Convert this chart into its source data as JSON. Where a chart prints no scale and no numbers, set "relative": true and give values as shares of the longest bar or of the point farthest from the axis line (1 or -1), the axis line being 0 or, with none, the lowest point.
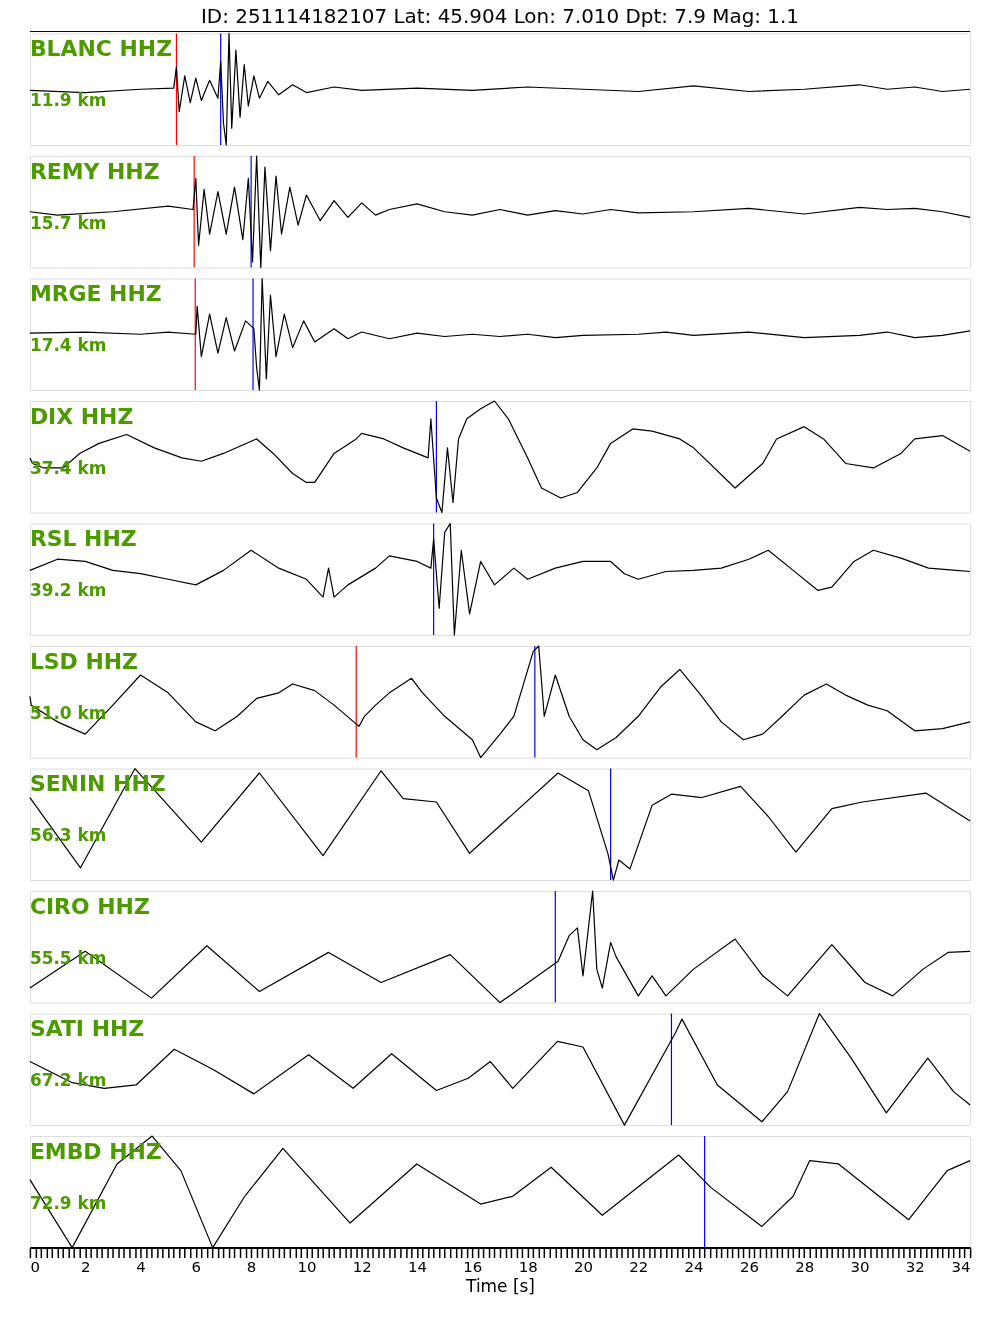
{
  "chart_data": [
    {
      "type": "line",
      "relative": true,
      "title": "ID: 251114182107 Lat:  45.904 Lon:   7.010 Dpt:     7.9 Mag:   1.1",
      "xlim": [
        0,
        34
      ],
      "tick_labels": false,
      "annotations": [
        "BLANC HHZ",
        "11.9 km"
      ],
      "ref_lines": [
        {
          "axis": "x",
          "value": 5.3,
          "color": "#ff0000"
        },
        {
          "axis": "x",
          "value": 6.9,
          "color": "#0000ff"
        }
      ],
      "series": [
        {
          "color": "#000000",
          "x": [
            0,
            2,
            4,
            5.2,
            5.3,
            5.4,
            5.6,
            5.8,
            6.0,
            6.2,
            6.5,
            6.8,
            6.9,
            7.0,
            7.1,
            7.2,
            7.3,
            7.45,
            7.6,
            7.75,
            7.9,
            8.1,
            8.3,
            8.6,
            9,
            9.5,
            10,
            11,
            12,
            14,
            16,
            18,
            20,
            22,
            24,
            26,
            28,
            30,
            31,
            32,
            33,
            34
          ],
          "values": [
            0.49,
            0.47,
            0.5,
            0.51,
            0.7,
            0.3,
            0.62,
            0.38,
            0.6,
            0.4,
            0.58,
            0.42,
            0.75,
            0.2,
            0.0,
            1.0,
            0.15,
            0.85,
            0.25,
            0.72,
            0.35,
            0.62,
            0.42,
            0.57,
            0.45,
            0.54,
            0.47,
            0.52,
            0.49,
            0.51,
            0.49,
            0.52,
            0.5,
            0.48,
            0.53,
            0.48,
            0.5,
            0.54,
            0.5,
            0.52,
            0.48,
            0.5
          ]
        }
      ]
    },
    {
      "type": "line",
      "relative": true,
      "xlim": [
        0,
        34
      ],
      "tick_labels": false,
      "annotations": [
        "REMY HHZ",
        "15.7 km"
      ],
      "ref_lines": [
        {
          "axis": "x",
          "value": 5.94,
          "color": "#ff0000"
        },
        {
          "axis": "x",
          "value": 8.0,
          "color": "#0000ff"
        }
      ],
      "series": [
        {
          "color": "#000000",
          "x": [
            0,
            1,
            3,
            5,
            5.9,
            6.0,
            6.1,
            6.3,
            6.5,
            6.8,
            7.1,
            7.4,
            7.7,
            7.9,
            8.05,
            8.2,
            8.35,
            8.5,
            8.7,
            8.9,
            9.1,
            9.4,
            9.7,
            10,
            10.5,
            11,
            11.5,
            12,
            12.5,
            13,
            14,
            15,
            16,
            17,
            18,
            19,
            20,
            21,
            22,
            24,
            26,
            28,
            30,
            31,
            32,
            33,
            34
          ],
          "values": [
            0.5,
            0.47,
            0.5,
            0.55,
            0.52,
            0.8,
            0.2,
            0.7,
            0.3,
            0.68,
            0.3,
            0.72,
            0.25,
            0.8,
            0.05,
            1.0,
            0.0,
            0.9,
            0.15,
            0.82,
            0.3,
            0.72,
            0.38,
            0.65,
            0.42,
            0.6,
            0.45,
            0.58,
            0.47,
            0.52,
            0.57,
            0.5,
            0.47,
            0.52,
            0.47,
            0.51,
            0.48,
            0.52,
            0.49,
            0.5,
            0.53,
            0.48,
            0.54,
            0.52,
            0.53,
            0.5,
            0.45
          ]
        }
      ]
    },
    {
      "type": "line",
      "relative": true,
      "xlim": [
        0,
        34
      ],
      "tick_labels": false,
      "annotations": [
        "MRGE HHZ",
        "17.4 km"
      ],
      "ref_lines": [
        {
          "axis": "x",
          "value": 5.98,
          "color": "#ff0000"
        },
        {
          "axis": "x",
          "value": 8.07,
          "color": "#0000ff"
        }
      ],
      "series": [
        {
          "color": "#000000",
          "x": [
            0,
            2,
            4,
            5,
            6.0,
            6.05,
            6.2,
            6.5,
            6.8,
            7.1,
            7.4,
            7.8,
            8.1,
            8.2,
            8.3,
            8.4,
            8.55,
            8.7,
            8.9,
            9.2,
            9.5,
            9.9,
            10.3,
            11,
            11.5,
            12,
            13,
            14,
            15,
            16,
            17,
            18,
            19,
            20,
            22,
            23,
            24,
            26,
            28,
            30,
            31,
            32,
            33,
            34
          ],
          "values": [
            0.51,
            0.52,
            0.5,
            0.52,
            0.5,
            0.75,
            0.3,
            0.68,
            0.33,
            0.65,
            0.35,
            0.62,
            0.55,
            0.2,
            0.0,
            1.0,
            0.1,
            0.85,
            0.3,
            0.68,
            0.38,
            0.62,
            0.43,
            0.55,
            0.46,
            0.52,
            0.46,
            0.51,
            0.48,
            0.5,
            0.48,
            0.5,
            0.47,
            0.49,
            0.5,
            0.52,
            0.49,
            0.52,
            0.47,
            0.49,
            0.52,
            0.47,
            0.49,
            0.53
          ]
        }
      ]
    },
    {
      "type": "line",
      "relative": true,
      "xlim": [
        0,
        34
      ],
      "tick_labels": false,
      "annotations": [
        "DIX HHZ",
        "37.4 km"
      ],
      "ref_lines": [
        {
          "axis": "x",
          "value": 14.7,
          "color": "#0000ff"
        }
      ],
      "series": [
        {
          "color": "#000000",
          "x": [
            0,
            0.1,
            0.5,
            1.2,
            1.8,
            2.5,
            3.5,
            4.5,
            5.5,
            6.2,
            7,
            8.2,
            8.8,
            9.5,
            10,
            10.3,
            11,
            11.8,
            12,
            12.8,
            13.5,
            14.4,
            14.5,
            14.7,
            14.9,
            15.1,
            15.3,
            15.5,
            15.8,
            16.3,
            16.8,
            17.3,
            18,
            18.5,
            19.2,
            19.8,
            20.5,
            21,
            21.8,
            22.5,
            23.5,
            24,
            25.5,
            26.5,
            27,
            28,
            28.7,
            29.5,
            30.5,
            31.5,
            32,
            33,
            34
          ],
          "values": [
            0.49,
            0.44,
            0.4,
            0.4,
            0.53,
            0.62,
            0.7,
            0.58,
            0.49,
            0.46,
            0.53,
            0.66,
            0.53,
            0.35,
            0.27,
            0.27,
            0.53,
            0.66,
            0.71,
            0.66,
            0.58,
            0.49,
            0.84,
            0.13,
            0,
            0.58,
            0.09,
            0.66,
            0.84,
            0.93,
            1,
            0.84,
            0.49,
            0.22,
            0.13,
            0.18,
            0.4,
            0.62,
            0.75,
            0.73,
            0.66,
            0.58,
            0.22,
            0.44,
            0.66,
            0.77,
            0.66,
            0.44,
            0.4,
            0.53,
            0.66,
            0.69,
            0.55
          ]
        }
      ]
    },
    {
      "type": "line",
      "relative": true,
      "xlim": [
        0,
        34
      ],
      "tick_labels": false,
      "annotations": [
        "RSL HHZ",
        "39.2 km"
      ],
      "ref_lines": [
        {
          "axis": "x",
          "value": 14.6,
          "color": "#0000ff"
        }
      ],
      "series": [
        {
          "color": "#000000",
          "x": [
            0,
            1,
            2,
            3,
            4,
            5,
            6,
            7,
            8,
            9,
            10,
            10.6,
            10.8,
            11,
            11.5,
            12.5,
            13,
            14,
            14.5,
            14.6,
            14.8,
            15,
            15.2,
            15.35,
            15.6,
            15.9,
            16.3,
            16.8,
            17.5,
            18,
            19,
            20,
            21,
            21.5,
            22,
            23,
            24,
            25,
            26,
            26.7,
            27.5,
            28.5,
            29,
            29.8,
            30.5,
            31.5,
            32.5,
            33.5,
            34
          ],
          "values": [
            0.58,
            0.68,
            0.66,
            0.58,
            0.55,
            0.5,
            0.45,
            0.58,
            0.76,
            0.6,
            0.5,
            0.34,
            0.6,
            0.34,
            0.45,
            0.6,
            0.71,
            0.66,
            0.6,
            0.86,
            0.24,
            0.92,
            1,
            0,
            0.76,
            0.19,
            0.66,
            0.45,
            0.6,
            0.5,
            0.6,
            0.66,
            0.66,
            0.55,
            0.5,
            0.57,
            0.58,
            0.6,
            0.68,
            0.76,
            0.6,
            0.4,
            0.43,
            0.66,
            0.76,
            0.69,
            0.6,
            0.58,
            0.57
          ]
        }
      ]
    },
    {
      "type": "line",
      "relative": true,
      "xlim": [
        0,
        34
      ],
      "tick_labels": false,
      "annotations": [
        "LSD HHZ",
        "51.0 km"
      ],
      "ref_lines": [
        {
          "axis": "x",
          "value": 11.8,
          "color": "#ff0000"
        },
        {
          "axis": "x",
          "value": 18.26,
          "color": "#0000ff"
        }
      ],
      "series": [
        {
          "color": "#000000",
          "x": [
            0,
            0.05,
            1,
            2,
            3,
            4,
            5,
            6,
            6.7,
            7.5,
            8.2,
            9,
            9.5,
            10.3,
            11,
            11.9,
            12.1,
            12.5,
            13,
            13.8,
            14.2,
            15,
            16,
            16.3,
            17,
            17.5,
            18.2,
            18.4,
            18.6,
            19,
            19.5,
            20,
            20.5,
            21.2,
            22,
            22.8,
            23.5,
            24.2,
            25,
            25.8,
            26.5,
            27.2,
            28,
            28.8,
            29.5,
            30.3,
            31,
            32,
            33,
            34
          ],
          "values": [
            0.55,
            0.47,
            0.32,
            0.21,
            0.47,
            0.74,
            0.58,
            0.32,
            0.24,
            0.37,
            0.53,
            0.58,
            0.66,
            0.6,
            0.47,
            0.28,
            0.37,
            0.47,
            0.58,
            0.71,
            0.58,
            0.37,
            0.16,
            0,
            0.21,
            0.37,
            0.95,
            1,
            0.37,
            0.74,
            0.37,
            0.16,
            0.07,
            0.18,
            0.37,
            0.63,
            0.79,
            0.58,
            0.32,
            0.16,
            0.21,
            0.37,
            0.56,
            0.66,
            0.56,
            0.47,
            0.42,
            0.24,
            0.26,
            0.32
          ]
        }
      ]
    },
    {
      "type": "line",
      "relative": true,
      "xlim": [
        0,
        34
      ],
      "tick_labels": false,
      "annotations": [
        "SENIN HHZ",
        "56.3 km"
      ],
      "ref_lines": [
        {
          "axis": "x",
          "value": 21.0,
          "color": "#0000ff"
        }
      ],
      "series": [
        {
          "color": "#000000",
          "x": [
            0,
            1.83,
            3.8,
            6.2,
            8.3,
            10.6,
            12.7,
            13.5,
            14.7,
            15.9,
            19.1,
            20.2,
            20.9,
            21.1,
            21.3,
            21.7,
            22.5,
            23.2,
            24.3,
            25.7,
            26.7,
            27.7,
            29,
            30.1,
            32.4,
            34
          ],
          "values": [
            0.74,
            0.11,
            1.0,
            0.34,
            0.96,
            0.22,
            0.98,
            0.73,
            0.7,
            0.24,
            0.96,
            0.8,
            0.24,
            0,
            0.18,
            0.1,
            0.67,
            0.77,
            0.74,
            0.84,
            0.57,
            0.25,
            0.64,
            0.7,
            0.78,
            0.53
          ]
        }
      ]
    },
    {
      "type": "line",
      "relative": true,
      "xlim": [
        0,
        34
      ],
      "tick_labels": false,
      "annotations": [
        "CIRO HHZ",
        "55.5 km"
      ],
      "ref_lines": [
        {
          "axis": "x",
          "value": 19.0,
          "color": "#0000ff"
        }
      ],
      "series": [
        {
          "color": "#000000",
          "x": [
            0,
            2.0,
            4.4,
            6.4,
            8.3,
            10.8,
            12.7,
            15.2,
            17.0,
            19.1,
            19.5,
            19.8,
            20.0,
            20.35,
            20.5,
            20.7,
            21.0,
            21.2,
            22.0,
            22.5,
            23.0,
            24,
            25.5,
            26.5,
            27.4,
            29.0,
            30.2,
            31.2,
            32.3,
            33.2,
            34
          ],
          "values": [
            0.13,
            0.46,
            0.04,
            0.51,
            0.1,
            0.45,
            0.18,
            0.43,
            0.0,
            0.37,
            0.6,
            0.67,
            0.24,
            1.0,
            0.3,
            0.13,
            0.54,
            0.41,
            0.06,
            0.24,
            0.06,
            0.3,
            0.57,
            0.24,
            0.06,
            0.52,
            0.18,
            0.06,
            0.3,
            0.45,
            0.46
          ]
        }
      ]
    },
    {
      "type": "line",
      "relative": true,
      "xlim": [
        0,
        34
      ],
      "tick_labels": false,
      "annotations": [
        "SATI HHZ",
        "67.2 km"
      ],
      "ref_lines": [
        {
          "axis": "x",
          "value": 23.2,
          "color": "#0000ff"
        }
      ],
      "series": [
        {
          "color": "#000000",
          "x": [
            0,
            1.53,
            2.69,
            3.84,
            5.22,
            6.61,
            8.1,
            10.08,
            11.69,
            13.08,
            14.7,
            15.85,
            16.65,
            17.46,
            19.08,
            20.0,
            21.5,
            23.35,
            23.58,
            24.86,
            26.47,
            27.4,
            28.55,
            29.7,
            30.97,
            32.47,
            33.4,
            34
          ],
          "values": [
            0.57,
            0.38,
            0.33,
            0.36,
            0.68,
            0.5,
            0.28,
            0.63,
            0.33,
            0.64,
            0.31,
            0.42,
            0.57,
            0.33,
            0.75,
            0.7,
            0,
            0.83,
            0.95,
            0.36,
            0.03,
            0.3,
            1.0,
            0.6,
            0.11,
            0.6,
            0.3,
            0.18
          ]
        }
      ]
    },
    {
      "type": "line",
      "relative": true,
      "xlim": [
        0,
        34
      ],
      "tick_labels": "x",
      "xlabel": "Time [s]",
      "annotations": [
        "EMBD HHZ",
        "72.9 km"
      ],
      "ref_lines": [
        {
          "axis": "x",
          "value": 24.4,
          "color": "#0000ff"
        }
      ],
      "xticks": [
        0,
        {
          "value": 0.2,
          "label": null
        },
        {
          "value": 0.4,
          "label": null
        },
        {
          "value": 0.6,
          "label": null
        },
        {
          "value": 0.8,
          "label": null
        },
        {
          "value": 1,
          "label": null
        },
        {
          "value": 1.2,
          "label": null
        },
        {
          "value": 1.4,
          "label": null
        },
        {
          "value": 1.6,
          "label": null
        },
        {
          "value": 1.8,
          "label": null
        },
        2,
        {
          "value": 2.2,
          "label": null
        },
        {
          "value": 2.4,
          "label": null
        },
        {
          "value": 2.6,
          "label": null
        },
        {
          "value": 2.8,
          "label": null
        },
        {
          "value": 3,
          "label": null
        },
        {
          "value": 3.2,
          "label": null
        },
        {
          "value": 3.4,
          "label": null
        },
        {
          "value": 3.6,
          "label": null
        },
        {
          "value": 3.8,
          "label": null
        },
        4,
        {
          "value": 4.2,
          "label": null
        },
        {
          "value": 4.4,
          "label": null
        },
        {
          "value": 4.6,
          "label": null
        },
        {
          "value": 4.8,
          "label": null
        },
        {
          "value": 5,
          "label": null
        },
        {
          "value": 5.2,
          "label": null
        },
        {
          "value": 5.4,
          "label": null
        },
        {
          "value": 5.6,
          "label": null
        },
        {
          "value": 5.8,
          "label": null
        },
        6,
        {
          "value": 6.2,
          "label": null
        },
        {
          "value": 6.4,
          "label": null
        },
        {
          "value": 6.6,
          "label": null
        },
        {
          "value": 6.8,
          "label": null
        },
        {
          "value": 7,
          "label": null
        },
        {
          "value": 7.2,
          "label": null
        },
        {
          "value": 7.4,
          "label": null
        },
        {
          "value": 7.6,
          "label": null
        },
        {
          "value": 7.8,
          "label": null
        },
        8,
        {
          "value": 8.2,
          "label": null
        },
        {
          "value": 8.4,
          "label": null
        },
        {
          "value": 8.6,
          "label": null
        },
        {
          "value": 8.8,
          "label": null
        },
        {
          "value": 9,
          "label": null
        },
        {
          "value": 9.2,
          "label": null
        },
        {
          "value": 9.4,
          "label": null
        },
        {
          "value": 9.6,
          "label": null
        },
        {
          "value": 9.8,
          "label": null
        },
        10,
        {
          "value": 10.2,
          "label": null
        },
        {
          "value": 10.4,
          "label": null
        },
        {
          "value": 10.6,
          "label": null
        },
        {
          "value": 10.8,
          "label": null
        },
        {
          "value": 11,
          "label": null
        },
        {
          "value": 11.2,
          "label": null
        },
        {
          "value": 11.4,
          "label": null
        },
        {
          "value": 11.6,
          "label": null
        },
        {
          "value": 11.8,
          "label": null
        },
        12,
        {
          "value": 12.2,
          "label": null
        },
        {
          "value": 12.4,
          "label": null
        },
        {
          "value": 12.6,
          "label": null
        },
        {
          "value": 12.8,
          "label": null
        },
        {
          "value": 13,
          "label": null
        },
        {
          "value": 13.2,
          "label": null
        },
        {
          "value": 13.4,
          "label": null
        },
        {
          "value": 13.6,
          "label": null
        },
        {
          "value": 13.8,
          "label": null
        },
        14,
        {
          "value": 14.2,
          "label": null
        },
        {
          "value": 14.4,
          "label": null
        },
        {
          "value": 14.6,
          "label": null
        },
        {
          "value": 14.8,
          "label": null
        },
        {
          "value": 15,
          "label": null
        },
        {
          "value": 15.2,
          "label": null
        },
        {
          "value": 15.4,
          "label": null
        },
        {
          "value": 15.6,
          "label": null
        },
        {
          "value": 15.8,
          "label": null
        },
        16,
        {
          "value": 16.2,
          "label": null
        },
        {
          "value": 16.4,
          "label": null
        },
        {
          "value": 16.6,
          "label": null
        },
        {
          "value": 16.8,
          "label": null
        },
        {
          "value": 17,
          "label": null
        },
        {
          "value": 17.2,
          "label": null
        },
        {
          "value": 17.4,
          "label": null
        },
        {
          "value": 17.6,
          "label": null
        },
        {
          "value": 17.8,
          "label": null
        },
        18,
        {
          "value": 18.2,
          "label": null
        },
        {
          "value": 18.4,
          "label": null
        },
        {
          "value": 18.6,
          "label": null
        },
        {
          "value": 18.8,
          "label": null
        },
        {
          "value": 19,
          "label": null
        },
        {
          "value": 19.2,
          "label": null
        },
        {
          "value": 19.4,
          "label": null
        },
        {
          "value": 19.6,
          "label": null
        },
        {
          "value": 19.8,
          "label": null
        },
        20,
        {
          "value": 20.2,
          "label": null
        },
        {
          "value": 20.4,
          "label": null
        },
        {
          "value": 20.6,
          "label": null
        },
        {
          "value": 20.8,
          "label": null
        },
        {
          "value": 21,
          "label": null
        },
        {
          "value": 21.2,
          "label": null
        },
        {
          "value": 21.4,
          "label": null
        },
        {
          "value": 21.6,
          "label": null
        },
        {
          "value": 21.8,
          "label": null
        },
        22,
        {
          "value": 22.2,
          "label": null
        },
        {
          "value": 22.4,
          "label": null
        },
        {
          "value": 22.6,
          "label": null
        },
        {
          "value": 22.8,
          "label": null
        },
        {
          "value": 23,
          "label": null
        },
        {
          "value": 23.2,
          "label": null
        },
        {
          "value": 23.4,
          "label": null
        },
        {
          "value": 23.6,
          "label": null
        },
        {
          "value": 23.8,
          "label": null
        },
        24,
        {
          "value": 24.2,
          "label": null
        },
        {
          "value": 24.4,
          "label": null
        },
        {
          "value": 24.6,
          "label": null
        },
        {
          "value": 24.8,
          "label": null
        },
        {
          "value": 25,
          "label": null
        },
        {
          "value": 25.2,
          "label": null
        },
        {
          "value": 25.4,
          "label": null
        },
        {
          "value": 25.6,
          "label": null
        },
        {
          "value": 25.8,
          "label": null
        },
        26,
        {
          "value": 26.2,
          "label": null
        },
        {
          "value": 26.4,
          "label": null
        },
        {
          "value": 26.6,
          "label": null
        },
        {
          "value": 26.8,
          "label": null
        },
        {
          "value": 27,
          "label": null
        },
        {
          "value": 27.2,
          "label": null
        },
        {
          "value": 27.4,
          "label": null
        },
        {
          "value": 27.6,
          "label": null
        },
        {
          "value": 27.8,
          "label": null
        },
        28,
        {
          "value": 28.2,
          "label": null
        },
        {
          "value": 28.4,
          "label": null
        },
        {
          "value": 28.6,
          "label": null
        },
        {
          "value": 28.8,
          "label": null
        },
        {
          "value": 29,
          "label": null
        },
        {
          "value": 29.2,
          "label": null
        },
        {
          "value": 29.4,
          "label": null
        },
        {
          "value": 29.6,
          "label": null
        },
        {
          "value": 29.8,
          "label": null
        },
        30,
        {
          "value": 30.2,
          "label": null
        },
        {
          "value": 30.4,
          "label": null
        },
        {
          "value": 30.6,
          "label": null
        },
        {
          "value": 30.8,
          "label": null
        },
        {
          "value": 31,
          "label": null
        },
        {
          "value": 31.2,
          "label": null
        },
        {
          "value": 31.4,
          "label": null
        },
        {
          "value": 31.6,
          "label": null
        },
        {
          "value": 31.8,
          "label": null
        },
        32,
        {
          "value": 32.2,
          "label": null
        },
        {
          "value": 32.4,
          "label": null
        },
        {
          "value": 32.6,
          "label": null
        },
        {
          "value": 32.8,
          "label": null
        },
        {
          "value": 33,
          "label": null
        },
        {
          "value": 33.2,
          "label": null
        },
        {
          "value": 33.4,
          "label": null
        },
        {
          "value": 33.6,
          "label": null
        },
        {
          "value": 33.8,
          "label": null
        },
        34
      ],
      "series": [
        {
          "color": "#000000",
          "x": [
            0,
            1.53,
            3.15,
            4.42,
            5.46,
            6.61,
            7.77,
            9.15,
            11.58,
            13.99,
            16.3,
            17.46,
            18.85,
            20.7,
            23.46,
            24.62,
            26.47,
            27.6,
            28.2,
            29.24,
            31.78,
            33.17,
            34
          ],
          "values": [
            0.61,
            0,
            0.75,
            1.0,
            0.69,
            0,
            0.46,
            0.89,
            0.22,
            0.75,
            0.39,
            0.46,
            0.72,
            0.29,
            0.83,
            0.54,
            0.19,
            0.46,
            0.78,
            0.75,
            0.25,
            0.69,
            0.78
          ]
        }
      ]
    }
  ]
}
